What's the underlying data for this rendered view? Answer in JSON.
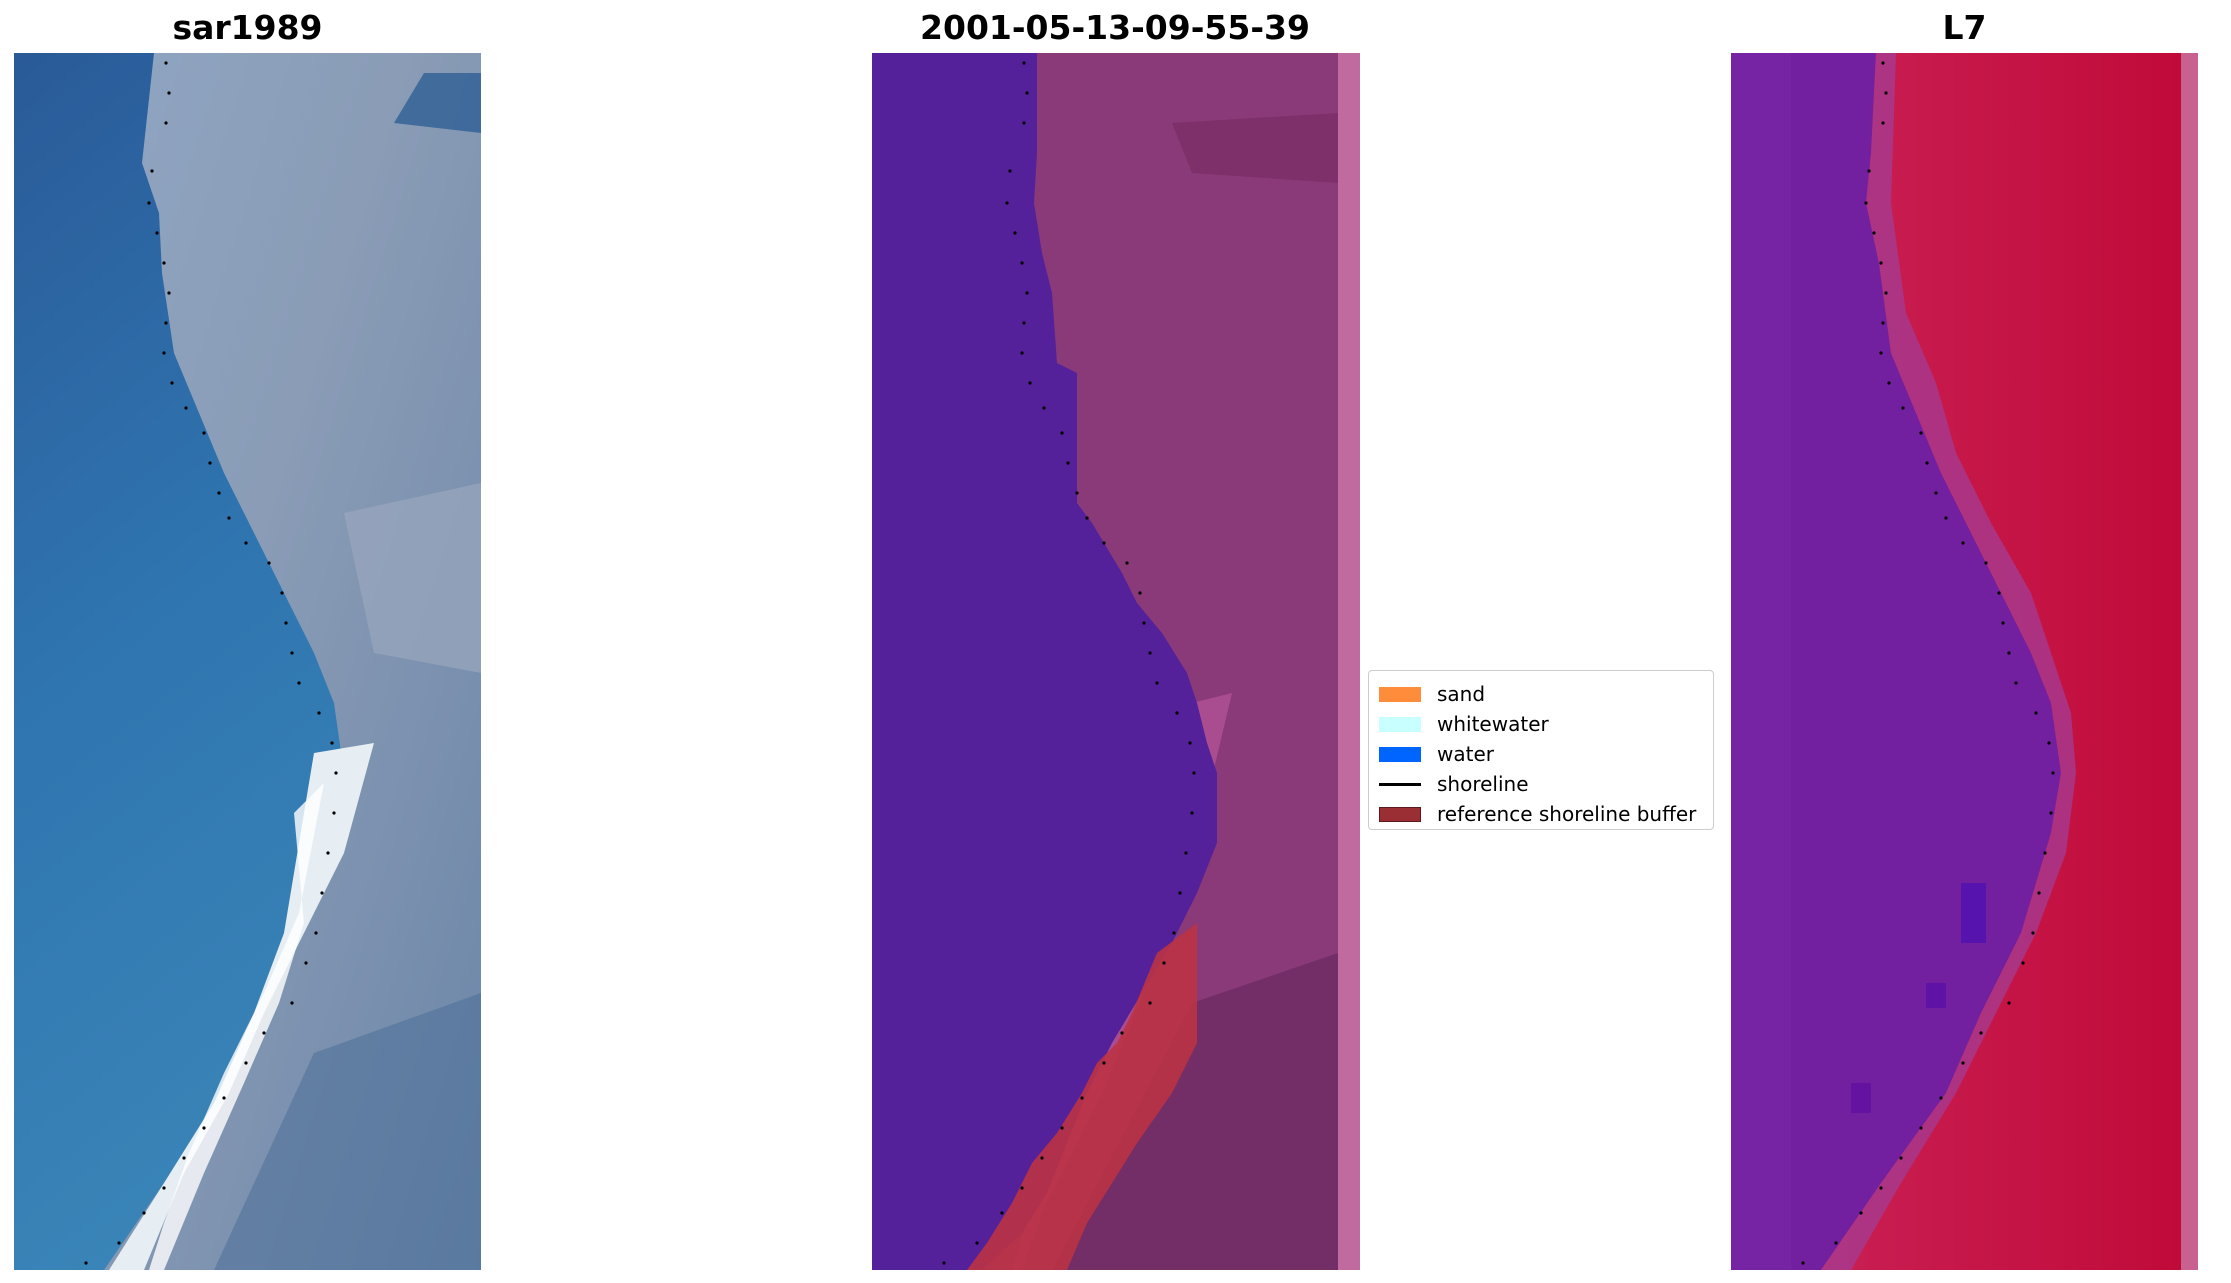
{
  "panels": [
    {
      "title": "sar1989"
    },
    {
      "title": "2001-05-13-09-55-39"
    },
    {
      "title": "L7"
    }
  ],
  "legend": {
    "items": [
      {
        "label": "sand",
        "color": "#ff8c3a",
        "kind": "patch"
      },
      {
        "label": "whitewater",
        "color": "#c8ffff",
        "kind": "patch"
      },
      {
        "label": "water",
        "color": "#0064ff",
        "kind": "patch"
      },
      {
        "label": "shoreline",
        "color": "#000000",
        "kind": "line"
      },
      {
        "label": "reference shoreline buffer",
        "color": "#9b2d35",
        "kind": "patch"
      }
    ]
  },
  "colors": {
    "water_class": "#54219a",
    "buffer_overlay": "#bb3344",
    "land_classified": "#8a3a78",
    "edge_strip": "#c06aa0",
    "ocean_rgb": "#2f6aa8",
    "beach_rgb": "#e8f0f4",
    "land_rgb": "#8e9ab0",
    "mndwi_water": "#7020a0",
    "mndwi_land": "#c8103c"
  }
}
